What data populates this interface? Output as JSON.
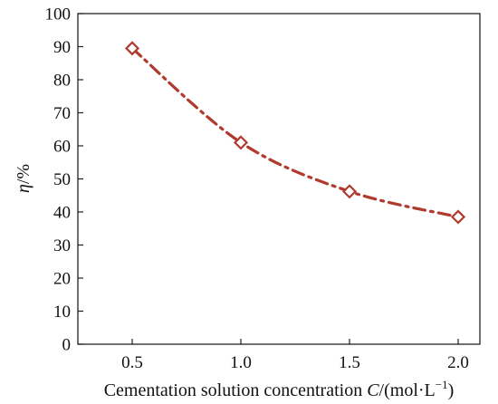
{
  "chart_data": {
    "type": "line",
    "x": [
      0.5,
      1.0,
      1.5,
      2.0
    ],
    "series": [
      {
        "values": [
          89.5,
          61,
          46.2,
          38.5
        ],
        "color": "#b03a2e",
        "marker": "diamond-open",
        "line_style": "dash-dot"
      }
    ],
    "xlabel": {
      "prefix": "Cementation solution concentration ",
      "var": "C",
      "suffix": "/(mol·L",
      "sup": "−1",
      "close": ")"
    },
    "ylabel": {
      "var": "η",
      "suffix": "/%"
    },
    "xlim": [
      0.25,
      2.1
    ],
    "ylim": [
      0,
      100
    ],
    "xticks": [
      0.5,
      1.0,
      1.5,
      2.0
    ],
    "xtick_labels": [
      "0.5",
      "1.0",
      "1.5",
      "2.0"
    ],
    "yticks": [
      0,
      10,
      20,
      30,
      40,
      50,
      60,
      70,
      80,
      90,
      100
    ],
    "ytick_labels": [
      "0",
      "10",
      "20",
      "30",
      "40",
      "50",
      "60",
      "70",
      "80",
      "90",
      "100"
    ],
    "grid": false
  }
}
